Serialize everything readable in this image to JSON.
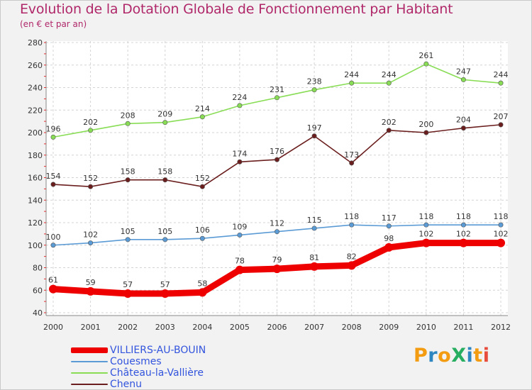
{
  "title": "Evolution de la Dotation Globale de Fonctionnement par Habitant",
  "subtitle": "(en € et par an)",
  "logo": {
    "text": "ProXiti",
    "colors": [
      "#f39c12",
      "#2e86c1",
      "#27ae60",
      "#e74c3c"
    ]
  },
  "chart_data": {
    "type": "line",
    "x": [
      2000,
      2001,
      2002,
      2003,
      2004,
      2005,
      2006,
      2007,
      2008,
      2009,
      2010,
      2011,
      2012
    ],
    "xtick_labels": [
      "2000",
      "2001",
      "2002",
      "2003",
      "2004",
      "2005",
      "2006",
      "2007",
      "2008",
      "2009",
      "2010",
      "2011",
      "2012"
    ],
    "ylim": [
      40,
      280
    ],
    "yticks": [
      40,
      60,
      80,
      100,
      120,
      140,
      160,
      180,
      200,
      220,
      240,
      260,
      280
    ],
    "ytick_labels": [
      "40",
      "60",
      "80",
      "100",
      "120",
      "140",
      "160",
      "180",
      "200",
      "220",
      "240",
      "260",
      "280"
    ],
    "grid": true,
    "legend_position": "bottom-left",
    "series": [
      {
        "name": "VILLIERS-AU-BOUIN",
        "color": "#ee0000",
        "values": [
          61,
          59,
          57,
          57,
          58,
          78,
          79,
          81,
          82,
          98,
          102,
          102,
          102
        ],
        "labels": [
          "61",
          "59",
          "57",
          "57",
          "58",
          "78",
          "79",
          "81",
          "82",
          "98",
          "102",
          "102",
          "102"
        ]
      },
      {
        "name": "Couesmes",
        "color": "#5b9bd5",
        "values": [
          100,
          102,
          105,
          105,
          106,
          109,
          112,
          115,
          118,
          117,
          118,
          118,
          118
        ],
        "labels": [
          "100",
          "102",
          "105",
          "105",
          "106",
          "109",
          "112",
          "115",
          "118",
          "117",
          "118",
          "118",
          "118"
        ]
      },
      {
        "name": "Château-la-Vallière",
        "color": "#88dd55",
        "values": [
          196,
          202,
          208,
          209,
          214,
          224,
          231,
          238,
          244,
          244,
          261,
          247,
          244
        ],
        "labels": [
          "196",
          "202",
          "208",
          "209",
          "214",
          "224",
          "231",
          "238",
          "244",
          "244",
          "261",
          "247",
          "244"
        ]
      },
      {
        "name": "Chenu",
        "color": "#6b1e1e",
        "values": [
          154,
          152,
          158,
          158,
          152,
          174,
          176,
          197,
          173,
          202,
          200,
          204,
          207
        ],
        "labels": [
          "154",
          "152",
          "158",
          "158",
          "152",
          "174",
          "176",
          "197",
          "173",
          "202",
          "200",
          "204",
          "207"
        ]
      }
    ]
  }
}
